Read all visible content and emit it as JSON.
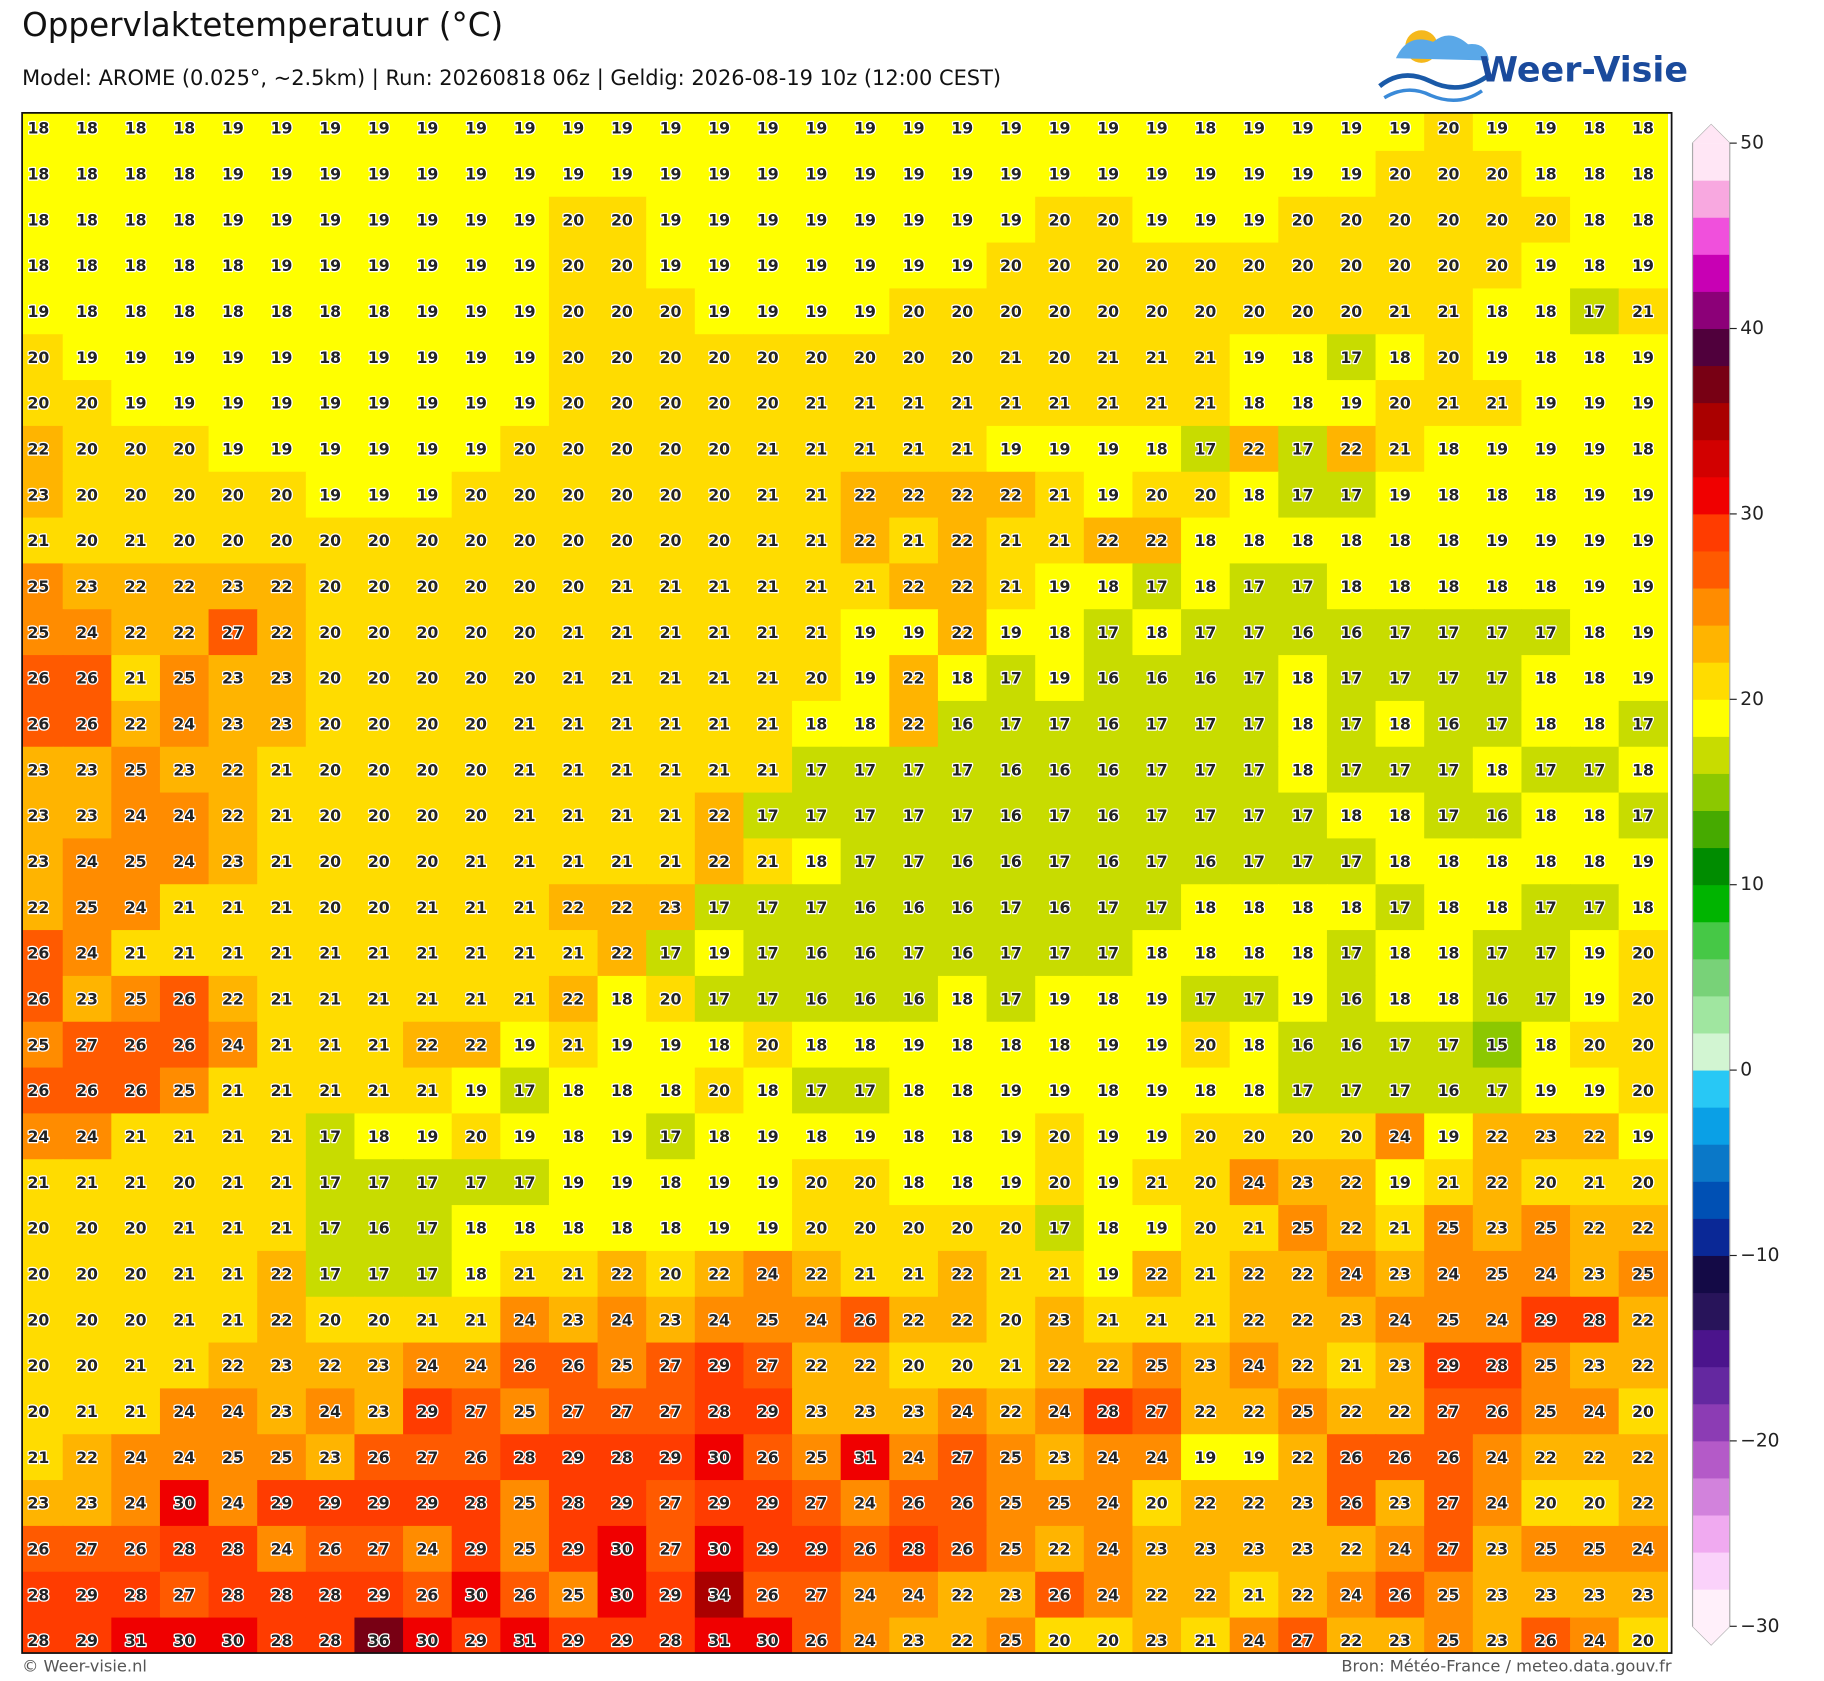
{
  "header": {
    "title": "Oppervlaktetemperatuur (°C)",
    "subtitle": "Model: AROME (0.025°, ~2.5km)  |  Run: 20260818 06z  |  Geldig: 2026-08-19 10z (12:00 CEST)"
  },
  "logo": {
    "text": "Weer-Visie"
  },
  "map": {
    "rows": [
      [
        18,
        18,
        18,
        18,
        19,
        19,
        19,
        19,
        19,
        19,
        19,
        19,
        19,
        19,
        19,
        19,
        19,
        19,
        19,
        19,
        19,
        19,
        19,
        19,
        18,
        19,
        19,
        19,
        19,
        20,
        19,
        19,
        18,
        18
      ],
      [
        18,
        18,
        18,
        18,
        19,
        19,
        19,
        19,
        19,
        19,
        19,
        19,
        19,
        19,
        19,
        19,
        19,
        19,
        19,
        19,
        19,
        19,
        19,
        19,
        19,
        19,
        19,
        19,
        20,
        20,
        20,
        18,
        18,
        18
      ],
      [
        18,
        18,
        18,
        18,
        19,
        19,
        19,
        19,
        19,
        19,
        19,
        20,
        20,
        19,
        19,
        19,
        19,
        19,
        19,
        19,
        19,
        20,
        20,
        19,
        19,
        19,
        20,
        20,
        20,
        20,
        20,
        20,
        18,
        18
      ],
      [
        18,
        18,
        18,
        18,
        18,
        19,
        19,
        19,
        19,
        19,
        19,
        20,
        20,
        19,
        19,
        19,
        19,
        19,
        19,
        19,
        20,
        20,
        20,
        20,
        20,
        20,
        20,
        20,
        20,
        20,
        20,
        19,
        18,
        19
      ],
      [
        19,
        18,
        18,
        18,
        18,
        18,
        18,
        18,
        19,
        19,
        19,
        20,
        20,
        20,
        19,
        19,
        19,
        19,
        20,
        20,
        20,
        20,
        20,
        20,
        20,
        20,
        20,
        20,
        21,
        21,
        18,
        18,
        17,
        21
      ],
      [
        20,
        19,
        19,
        19,
        19,
        19,
        18,
        19,
        19,
        19,
        19,
        20,
        20,
        20,
        20,
        20,
        20,
        20,
        20,
        20,
        21,
        20,
        21,
        21,
        21,
        19,
        18,
        17,
        18,
        20,
        19,
        18,
        18,
        19
      ],
      [
        20,
        20,
        19,
        19,
        19,
        19,
        19,
        19,
        19,
        19,
        19,
        20,
        20,
        20,
        20,
        20,
        21,
        21,
        21,
        21,
        21,
        21,
        21,
        21,
        21,
        18,
        18,
        19,
        20,
        21,
        21,
        19,
        19,
        19
      ],
      [
        22,
        20,
        20,
        20,
        19,
        19,
        19,
        19,
        19,
        19,
        20,
        20,
        20,
        20,
        20,
        21,
        21,
        21,
        21,
        21,
        19,
        19,
        19,
        18,
        17,
        22,
        17,
        22,
        21,
        18,
        19,
        19,
        19,
        18
      ],
      [
        23,
        20,
        20,
        20,
        20,
        20,
        19,
        19,
        19,
        20,
        20,
        20,
        20,
        20,
        20,
        21,
        21,
        22,
        22,
        22,
        22,
        21,
        19,
        20,
        20,
        18,
        17,
        17,
        19,
        18,
        18,
        18,
        19,
        19
      ],
      [
        21,
        20,
        21,
        20,
        20,
        20,
        20,
        20,
        20,
        20,
        20,
        20,
        20,
        20,
        20,
        21,
        21,
        22,
        21,
        22,
        21,
        21,
        22,
        22,
        18,
        18,
        18,
        18,
        18,
        18,
        19,
        19,
        19,
        19
      ],
      [
        25,
        23,
        22,
        22,
        23,
        22,
        20,
        20,
        20,
        20,
        20,
        20,
        21,
        21,
        21,
        21,
        21,
        21,
        22,
        22,
        21,
        19,
        18,
        17,
        18,
        17,
        17,
        18,
        18,
        18,
        18,
        18,
        19,
        19
      ],
      [
        25,
        24,
        22,
        22,
        27,
        22,
        20,
        20,
        20,
        20,
        20,
        21,
        21,
        21,
        21,
        21,
        21,
        19,
        19,
        22,
        19,
        18,
        17,
        18,
        17,
        17,
        16,
        16,
        17,
        17,
        17,
        17,
        18,
        19
      ],
      [
        26,
        26,
        21,
        25,
        23,
        23,
        20,
        20,
        20,
        20,
        20,
        21,
        21,
        21,
        21,
        21,
        20,
        19,
        22,
        18,
        17,
        19,
        16,
        16,
        16,
        17,
        18,
        17,
        17,
        17,
        17,
        18,
        18,
        19
      ],
      [
        26,
        26,
        22,
        24,
        23,
        23,
        20,
        20,
        20,
        20,
        21,
        21,
        21,
        21,
        21,
        21,
        18,
        18,
        22,
        16,
        17,
        17,
        16,
        17,
        17,
        17,
        18,
        17,
        18,
        16,
        17,
        18,
        18,
        17
      ],
      [
        23,
        23,
        25,
        23,
        22,
        21,
        20,
        20,
        20,
        20,
        21,
        21,
        21,
        21,
        21,
        21,
        17,
        17,
        17,
        17,
        16,
        16,
        16,
        17,
        17,
        17,
        18,
        17,
        17,
        17,
        18,
        17,
        17,
        18
      ],
      [
        23,
        23,
        24,
        24,
        22,
        21,
        20,
        20,
        20,
        20,
        21,
        21,
        21,
        21,
        22,
        17,
        17,
        17,
        17,
        17,
        16,
        17,
        16,
        17,
        17,
        17,
        17,
        18,
        18,
        17,
        16,
        18,
        18,
        17
      ],
      [
        23,
        24,
        25,
        24,
        23,
        21,
        20,
        20,
        20,
        21,
        21,
        21,
        21,
        21,
        22,
        21,
        18,
        17,
        17,
        16,
        16,
        17,
        16,
        17,
        16,
        17,
        17,
        17,
        18,
        18,
        18,
        18,
        18,
        19
      ],
      [
        22,
        25,
        24,
        21,
        21,
        21,
        20,
        20,
        21,
        21,
        21,
        22,
        22,
        23,
        17,
        17,
        17,
        16,
        16,
        16,
        17,
        16,
        17,
        17,
        18,
        18,
        18,
        18,
        17,
        18,
        18,
        17,
        17,
        18
      ],
      [
        26,
        24,
        21,
        21,
        21,
        21,
        21,
        21,
        21,
        21,
        21,
        21,
        22,
        17,
        19,
        17,
        16,
        16,
        17,
        16,
        17,
        17,
        17,
        18,
        18,
        18,
        18,
        17,
        18,
        18,
        17,
        17,
        19,
        20
      ],
      [
        26,
        23,
        25,
        26,
        22,
        21,
        21,
        21,
        21,
        21,
        21,
        22,
        18,
        20,
        17,
        17,
        16,
        16,
        16,
        18,
        17,
        19,
        18,
        19,
        17,
        17,
        19,
        16,
        18,
        18,
        16,
        17,
        19,
        20
      ],
      [
        25,
        27,
        26,
        26,
        24,
        21,
        21,
        21,
        22,
        22,
        19,
        21,
        19,
        19,
        18,
        20,
        18,
        18,
        19,
        18,
        18,
        18,
        19,
        19,
        20,
        18,
        16,
        16,
        17,
        17,
        15,
        18,
        20,
        20
      ],
      [
        26,
        26,
        26,
        25,
        21,
        21,
        21,
        21,
        21,
        19,
        17,
        18,
        18,
        18,
        20,
        18,
        17,
        17,
        18,
        18,
        19,
        19,
        18,
        19,
        18,
        18,
        17,
        17,
        17,
        16,
        17,
        19,
        19,
        20
      ],
      [
        24,
        24,
        21,
        21,
        21,
        21,
        17,
        18,
        19,
        20,
        19,
        18,
        19,
        17,
        18,
        19,
        18,
        19,
        18,
        18,
        19,
        20,
        19,
        19,
        20,
        20,
        20,
        20,
        24,
        19,
        22,
        23,
        22,
        19
      ],
      [
        21,
        21,
        21,
        20,
        21,
        21,
        17,
        17,
        17,
        17,
        17,
        19,
        19,
        18,
        19,
        19,
        20,
        20,
        18,
        18,
        19,
        20,
        19,
        21,
        20,
        24,
        23,
        22,
        19,
        21,
        22,
        20,
        21,
        20
      ],
      [
        20,
        20,
        20,
        21,
        21,
        21,
        17,
        16,
        17,
        18,
        18,
        18,
        18,
        18,
        19,
        19,
        20,
        20,
        20,
        20,
        20,
        17,
        18,
        19,
        20,
        21,
        25,
        22,
        21,
        25,
        23,
        25,
        22,
        22
      ],
      [
        20,
        20,
        20,
        21,
        21,
        22,
        17,
        17,
        17,
        18,
        21,
        21,
        22,
        20,
        22,
        24,
        22,
        21,
        21,
        22,
        21,
        21,
        19,
        22,
        21,
        22,
        22,
        24,
        23,
        24,
        25,
        24,
        23,
        25
      ],
      [
        20,
        20,
        20,
        21,
        21,
        22,
        20,
        20,
        21,
        21,
        24,
        23,
        24,
        23,
        24,
        25,
        24,
        26,
        22,
        22,
        20,
        23,
        21,
        21,
        21,
        22,
        22,
        23,
        24,
        25,
        24,
        29,
        28,
        22
      ],
      [
        20,
        20,
        21,
        21,
        22,
        23,
        22,
        23,
        24,
        24,
        26,
        26,
        25,
        27,
        29,
        27,
        22,
        22,
        20,
        20,
        21,
        22,
        22,
        25,
        23,
        24,
        22,
        21,
        23,
        29,
        28,
        25,
        23,
        22
      ],
      [
        20,
        21,
        21,
        24,
        24,
        23,
        24,
        23,
        29,
        27,
        25,
        27,
        27,
        27,
        28,
        29,
        23,
        23,
        23,
        24,
        22,
        24,
        28,
        27,
        22,
        22,
        25,
        22,
        22,
        27,
        26,
        25,
        24,
        20
      ],
      [
        21,
        22,
        24,
        24,
        25,
        25,
        23,
        26,
        27,
        26,
        28,
        29,
        28,
        29,
        30,
        26,
        25,
        31,
        24,
        27,
        25,
        23,
        24,
        24,
        19,
        19,
        22,
        26,
        26,
        26,
        24,
        22,
        22,
        22
      ],
      [
        23,
        23,
        24,
        30,
        24,
        29,
        29,
        29,
        29,
        28,
        25,
        28,
        29,
        27,
        29,
        29,
        27,
        24,
        26,
        26,
        25,
        25,
        24,
        20,
        22,
        22,
        23,
        26,
        23,
        27,
        24,
        20,
        20,
        22
      ],
      [
        26,
        27,
        26,
        28,
        28,
        24,
        26,
        27,
        24,
        29,
        25,
        29,
        30,
        27,
        30,
        29,
        29,
        26,
        28,
        26,
        25,
        22,
        24,
        23,
        23,
        23,
        23,
        22,
        24,
        27,
        23,
        25,
        25,
        24
      ],
      [
        28,
        29,
        28,
        27,
        28,
        28,
        28,
        29,
        26,
        30,
        26,
        25,
        30,
        29,
        34,
        26,
        27,
        24,
        24,
        22,
        23,
        26,
        24,
        22,
        22,
        21,
        22,
        24,
        26,
        25,
        23,
        23,
        23,
        23
      ],
      [
        28,
        29,
        31,
        30,
        30,
        28,
        28,
        36,
        30,
        29,
        31,
        29,
        29,
        28,
        31,
        30,
        26,
        24,
        23,
        22,
        25,
        20,
        20,
        23,
        21,
        24,
        27,
        22,
        23,
        25,
        23,
        26,
        24,
        20
      ]
    ]
  },
  "colorbar": {
    "lim": [
      -30,
      50
    ],
    "ticks": [
      {
        "value": -30,
        "label": "−30"
      },
      {
        "value": -20,
        "label": "−20"
      },
      {
        "value": -10,
        "label": "−10"
      },
      0,
      10,
      20,
      30,
      40,
      50
    ],
    "colors": [
      "#fff0fa",
      "#fad2fa",
      "#f0aaf0",
      "#d282dc",
      "#b45ac8",
      "#8c3cb4",
      "#6428a0",
      "#4b148c",
      "#28145a",
      "#140a46",
      "#0a2896",
      "#0050b4",
      "#0a78c8",
      "#0aa0e6",
      "#28c8f5",
      "#d2f5d2",
      "#a0e6a0",
      "#78d278",
      "#46c846",
      "#00b400",
      "#008c00",
      "#46aa00",
      "#8cc800",
      "#c8dc00",
      "#ffff00",
      "#ffdc00",
      "#ffb400",
      "#ff8c00",
      "#ff5a00",
      "#ff3c00",
      "#f00000",
      "#d20000",
      "#aa0000",
      "#780014",
      "#50003c",
      "#8c0078",
      "#c800b4",
      "#f050dc",
      "#f8a8e0",
      "#ffe6f5"
    ]
  },
  "footer": {
    "credit": "© Weer-visie.nl",
    "source": "Bron: Météo-France / meteo.data.gouv.fr"
  }
}
